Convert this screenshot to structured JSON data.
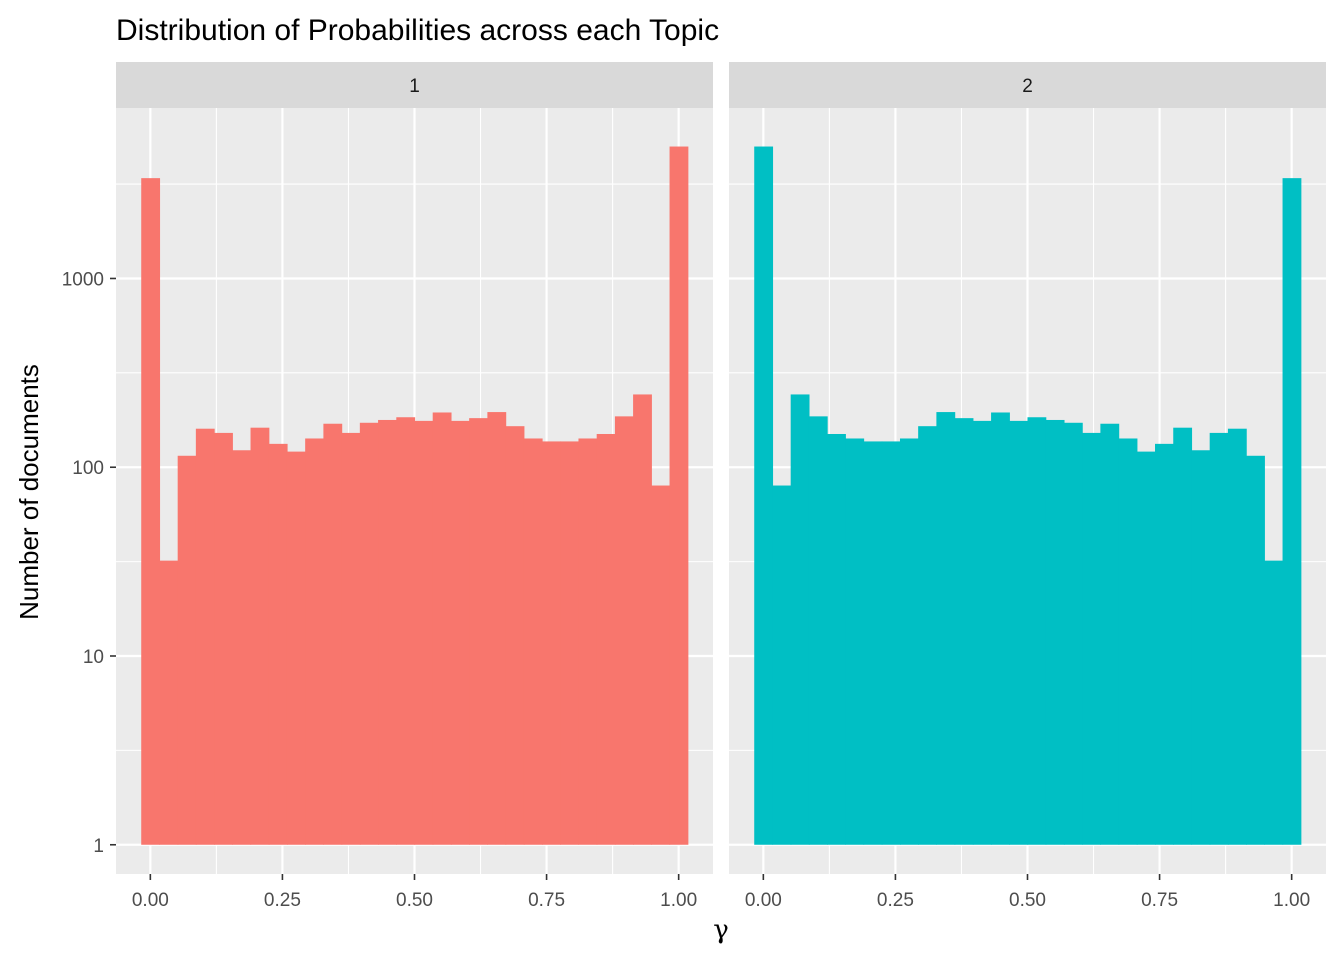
{
  "chart_data": {
    "type": "bar",
    "title": "Distribution of Probabilities across each Topic",
    "xlabel": "γ",
    "ylabel": "Number of documents",
    "yscale": "log10",
    "ylim": [
      0.7,
      8000
    ],
    "xlim": [
      -0.065,
      1.065
    ],
    "x_ticks": [
      0,
      0.25,
      0.5,
      0.75,
      1
    ],
    "x_tick_labels": [
      "0.00",
      "0.25",
      "0.50",
      "0.75",
      "1.00"
    ],
    "y_ticks": [
      1,
      10,
      100,
      1000
    ],
    "y_tick_labels": [
      "1",
      "10",
      "100",
      "1000"
    ],
    "grid": true,
    "legend": "none",
    "bin_width": 0.0345,
    "bin_centers": [
      0.0,
      0.0345,
      0.069,
      0.1034,
      0.1379,
      0.1724,
      0.2069,
      0.2414,
      0.2759,
      0.3103,
      0.3448,
      0.3793,
      0.4138,
      0.4483,
      0.4828,
      0.5172,
      0.5517,
      0.5862,
      0.6207,
      0.6552,
      0.6897,
      0.7241,
      0.7586,
      0.7931,
      0.8276,
      0.8621,
      0.8966,
      0.931,
      0.9655,
      1.0
    ],
    "panels": [
      {
        "label": "1",
        "color": "#F8766D",
        "values": [
          3400,
          32,
          115,
          160,
          152,
          123,
          162,
          133,
          121,
          142,
          170,
          152,
          172,
          178,
          184,
          176,
          195,
          176,
          182,
          196,
          165,
          142,
          137,
          137,
          142,
          150,
          186,
          243,
          80,
          5000
        ]
      },
      {
        "label": "2",
        "color": "#00BFC4",
        "values": [
          5000,
          80,
          243,
          186,
          150,
          142,
          137,
          137,
          142,
          165,
          196,
          182,
          176,
          195,
          176,
          184,
          178,
          172,
          152,
          170,
          142,
          121,
          133,
          162,
          123,
          152,
          160,
          115,
          32,
          3400
        ]
      }
    ]
  }
}
